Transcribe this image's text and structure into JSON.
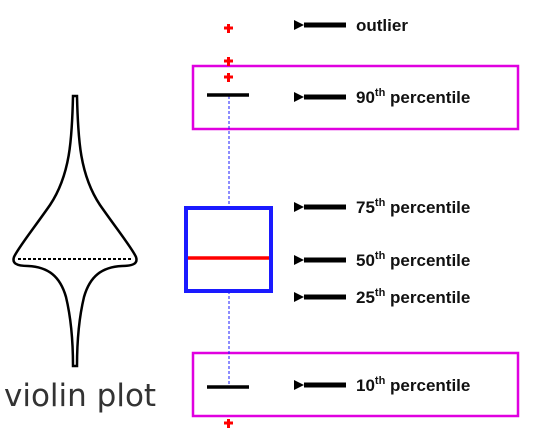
{
  "labels": {
    "outlier": "outlier",
    "p90": {
      "num": "90",
      "sup": "th",
      "text": " percentile"
    },
    "p75": {
      "num": "75",
      "sup": "th",
      "text": " percentile"
    },
    "p50": {
      "num": "50",
      "sup": "th",
      "text": " percentile"
    },
    "p25": {
      "num": "25",
      "sup": "th",
      "text": " percentile"
    },
    "p10": {
      "num": "10",
      "sup": "th",
      "text": " percentile"
    }
  },
  "violin_caption": "violin plot",
  "colors": {
    "box": "#1a1aff",
    "median": "#ff0000",
    "highlight": "#e000e0",
    "outlier": "#ff0000",
    "whisker": "#1a1aff",
    "arrow": "#000000"
  }
}
